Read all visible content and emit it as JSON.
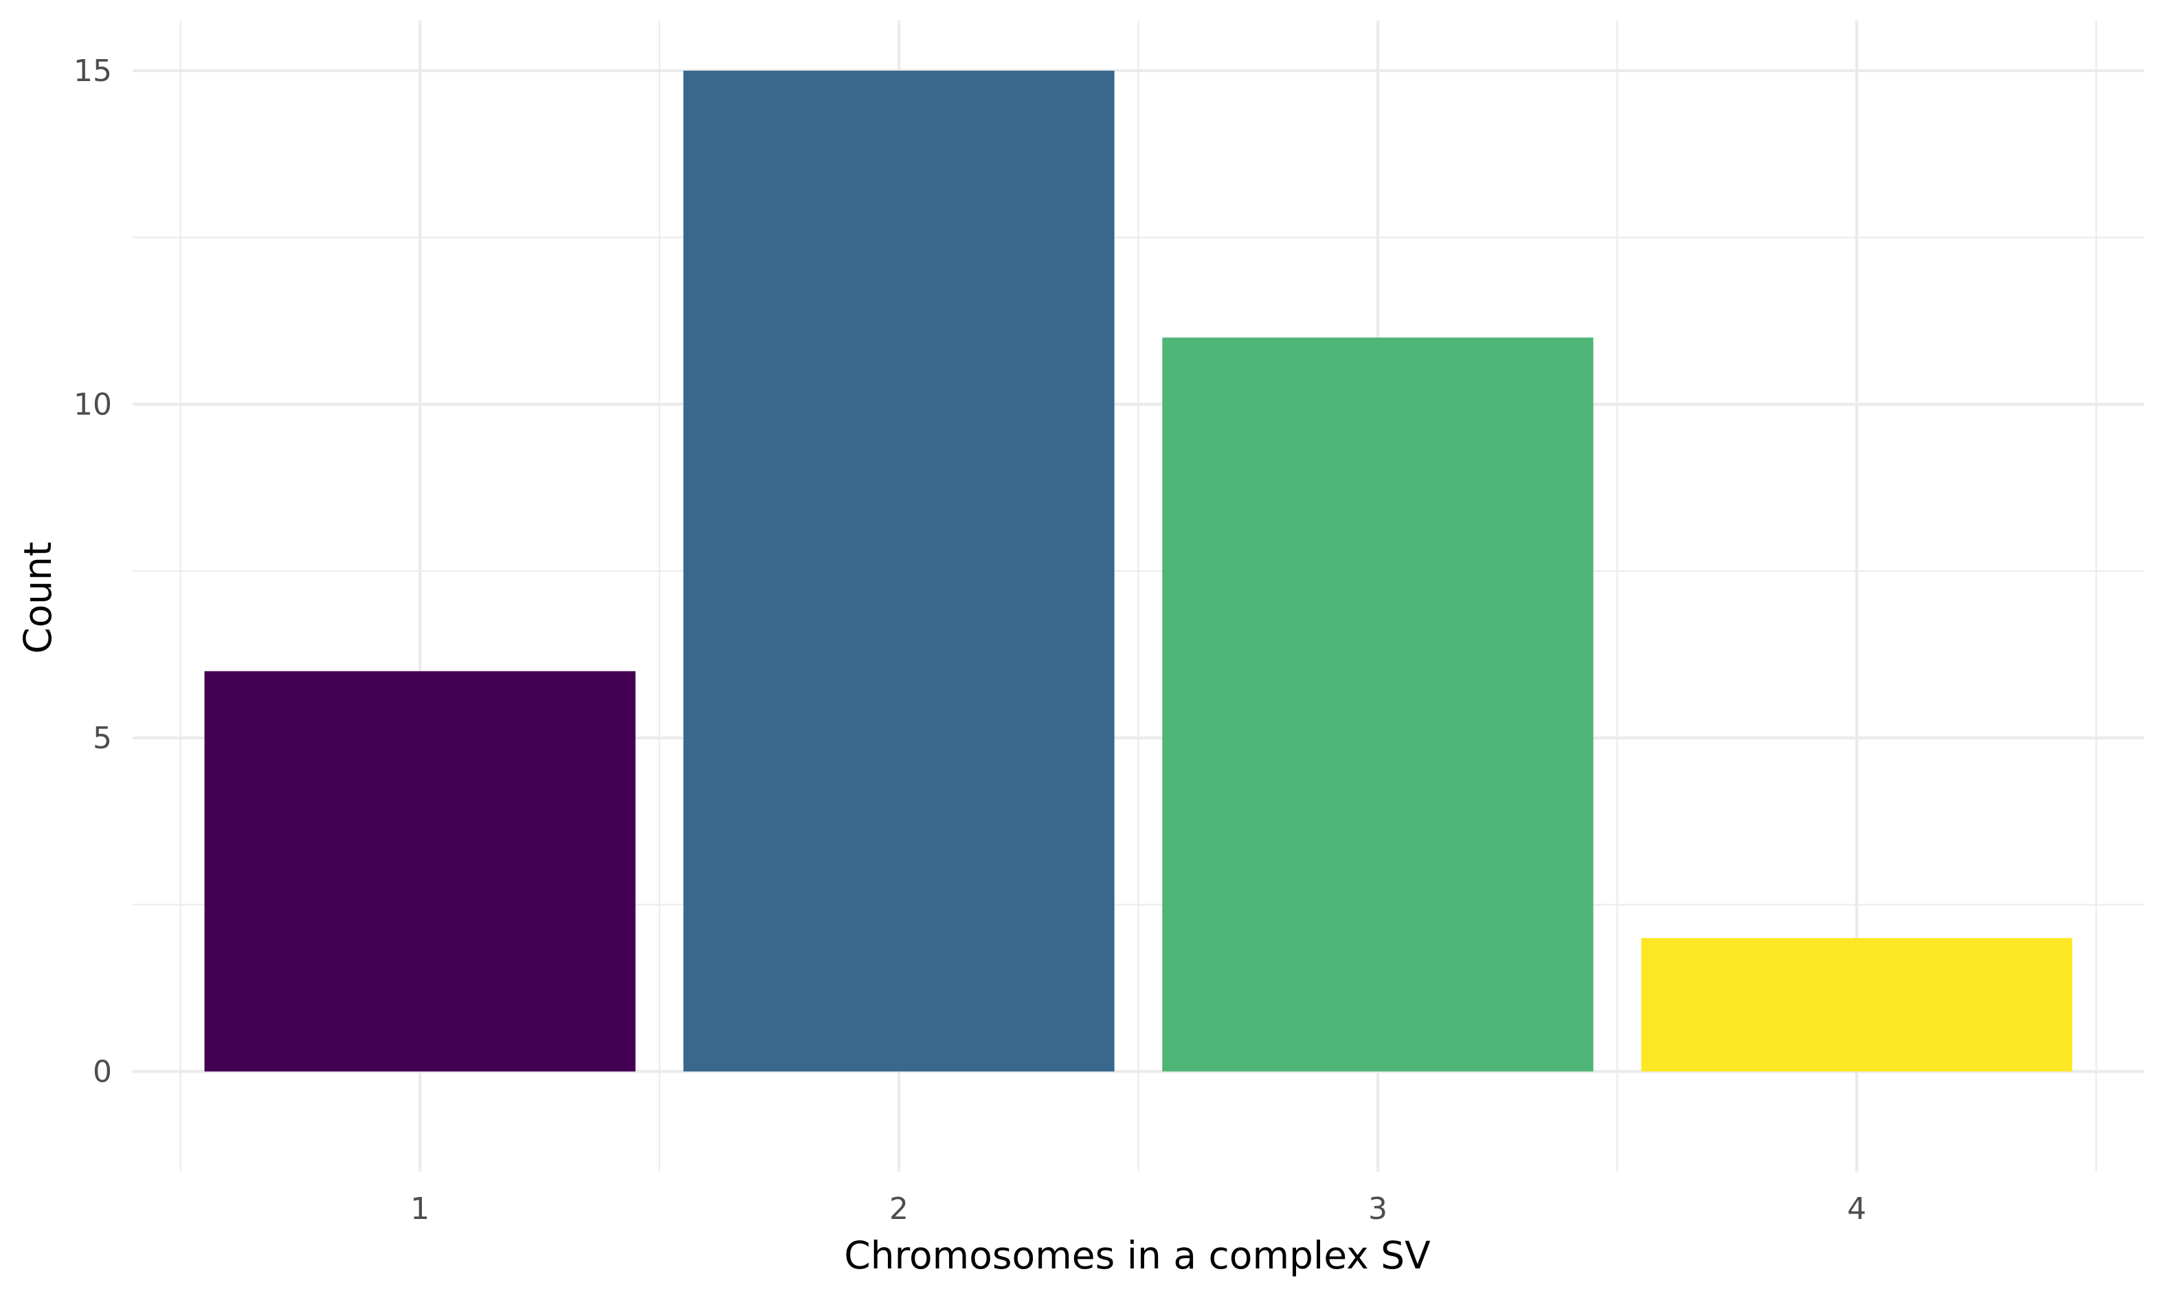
{
  "chart_data": {
    "type": "bar",
    "xlabel": "Chromosomes in a complex SV",
    "ylabel": "Count",
    "categories": [
      "1",
      "2",
      "3",
      "4"
    ],
    "values": [
      6,
      15,
      11,
      2
    ],
    "colors": [
      "#440154",
      "#39688C",
      "#4EB576",
      "#FDE725"
    ],
    "ylim": [
      -1.5,
      15.75
    ],
    "yticks": [
      0,
      5,
      10,
      15
    ],
    "grid": true,
    "legend": "none"
  }
}
